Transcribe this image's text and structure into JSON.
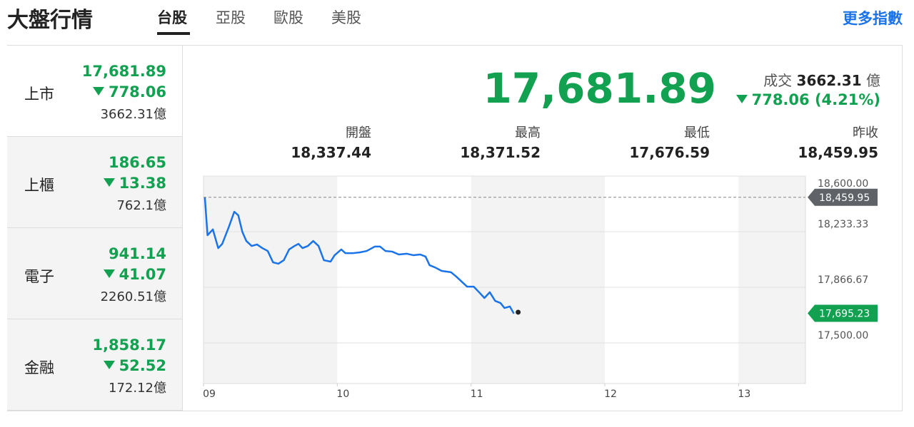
{
  "header": {
    "title": "大盤行情",
    "tabs": [
      "台股",
      "亞股",
      "歐股",
      "美股"
    ],
    "more": "更多指數"
  },
  "sidebar": [
    {
      "name": "上市",
      "price": "17,681.89",
      "change": "778.06",
      "volume": "3662.31億"
    },
    {
      "name": "上櫃",
      "price": "186.65",
      "change": "13.38",
      "volume": "762.1億"
    },
    {
      "name": "電子",
      "price": "941.14",
      "change": "41.07",
      "volume": "2260.51億"
    },
    {
      "name": "金融",
      "price": "1,858.17",
      "change": "52.52",
      "volume": "172.12億"
    }
  ],
  "summary": {
    "price": "17,681.89",
    "volume_label": "成交",
    "volume": "3662.31",
    "volume_unit": "億",
    "change": "778.06 (4.21%)",
    "stats": [
      {
        "label": "開盤",
        "value": "18,337.44"
      },
      {
        "label": "最高",
        "value": "18,371.52"
      },
      {
        "label": "最低",
        "value": "17,676.59"
      },
      {
        "label": "昨收",
        "value": "18,459.95"
      }
    ]
  },
  "chart_data": {
    "type": "line",
    "color": "#1a73e8",
    "x": [
      9.01,
      9.03,
      9.07,
      9.11,
      9.14,
      9.19,
      9.23,
      9.26,
      9.29,
      9.32,
      9.36,
      9.4,
      9.44,
      9.48,
      9.52,
      9.56,
      9.6,
      9.64,
      9.68,
      9.71,
      9.74,
      9.78,
      9.82,
      9.86,
      9.9,
      9.95,
      9.98,
      10.03,
      10.06,
      10.12,
      10.17,
      10.22,
      10.28,
      10.32,
      10.36,
      10.41,
      10.46,
      10.52,
      10.57,
      10.62,
      10.66,
      10.69,
      10.73,
      10.78,
      10.85,
      10.89,
      10.93,
      10.97,
      11.02,
      11.06,
      11.1,
      11.14,
      11.18,
      11.22,
      11.25,
      11.29,
      11.32
    ],
    "values": [
      18459,
      18210,
      18248,
      18125,
      18153,
      18266,
      18365,
      18341,
      18233,
      18172,
      18139,
      18149,
      18125,
      18106,
      18031,
      18022,
      18045,
      18116,
      18139,
      18153,
      18125,
      18139,
      18172,
      18139,
      18045,
      18036,
      18078,
      18116,
      18092,
      18092,
      18097,
      18106,
      18135,
      18135,
      18106,
      18102,
      18083,
      18088,
      18078,
      18083,
      18069,
      18012,
      17998,
      17975,
      17966,
      17937,
      17904,
      17871,
      17871,
      17834,
      17796,
      17834,
      17777,
      17763,
      17730,
      17740,
      17693
    ],
    "xlim": [
      9,
      13.5
    ],
    "xticks": [
      {
        "value": 9,
        "label": "09"
      },
      10,
      11,
      12,
      13
    ],
    "ylim": [
      17500,
      18600
    ],
    "yticks": [
      {
        "value": 17500,
        "label": "17,500.00"
      },
      {
        "value": 17866.67,
        "label": "17,866.67"
      },
      {
        "value": 18233.33,
        "label": "18,233.33"
      },
      {
        "value": 18600,
        "label": "18,600.00"
      }
    ],
    "grid": true,
    "reference": {
      "value": 18459.95,
      "label": "18,459.95"
    },
    "last": {
      "value": 17695.23,
      "label": "17,695.23"
    }
  }
}
